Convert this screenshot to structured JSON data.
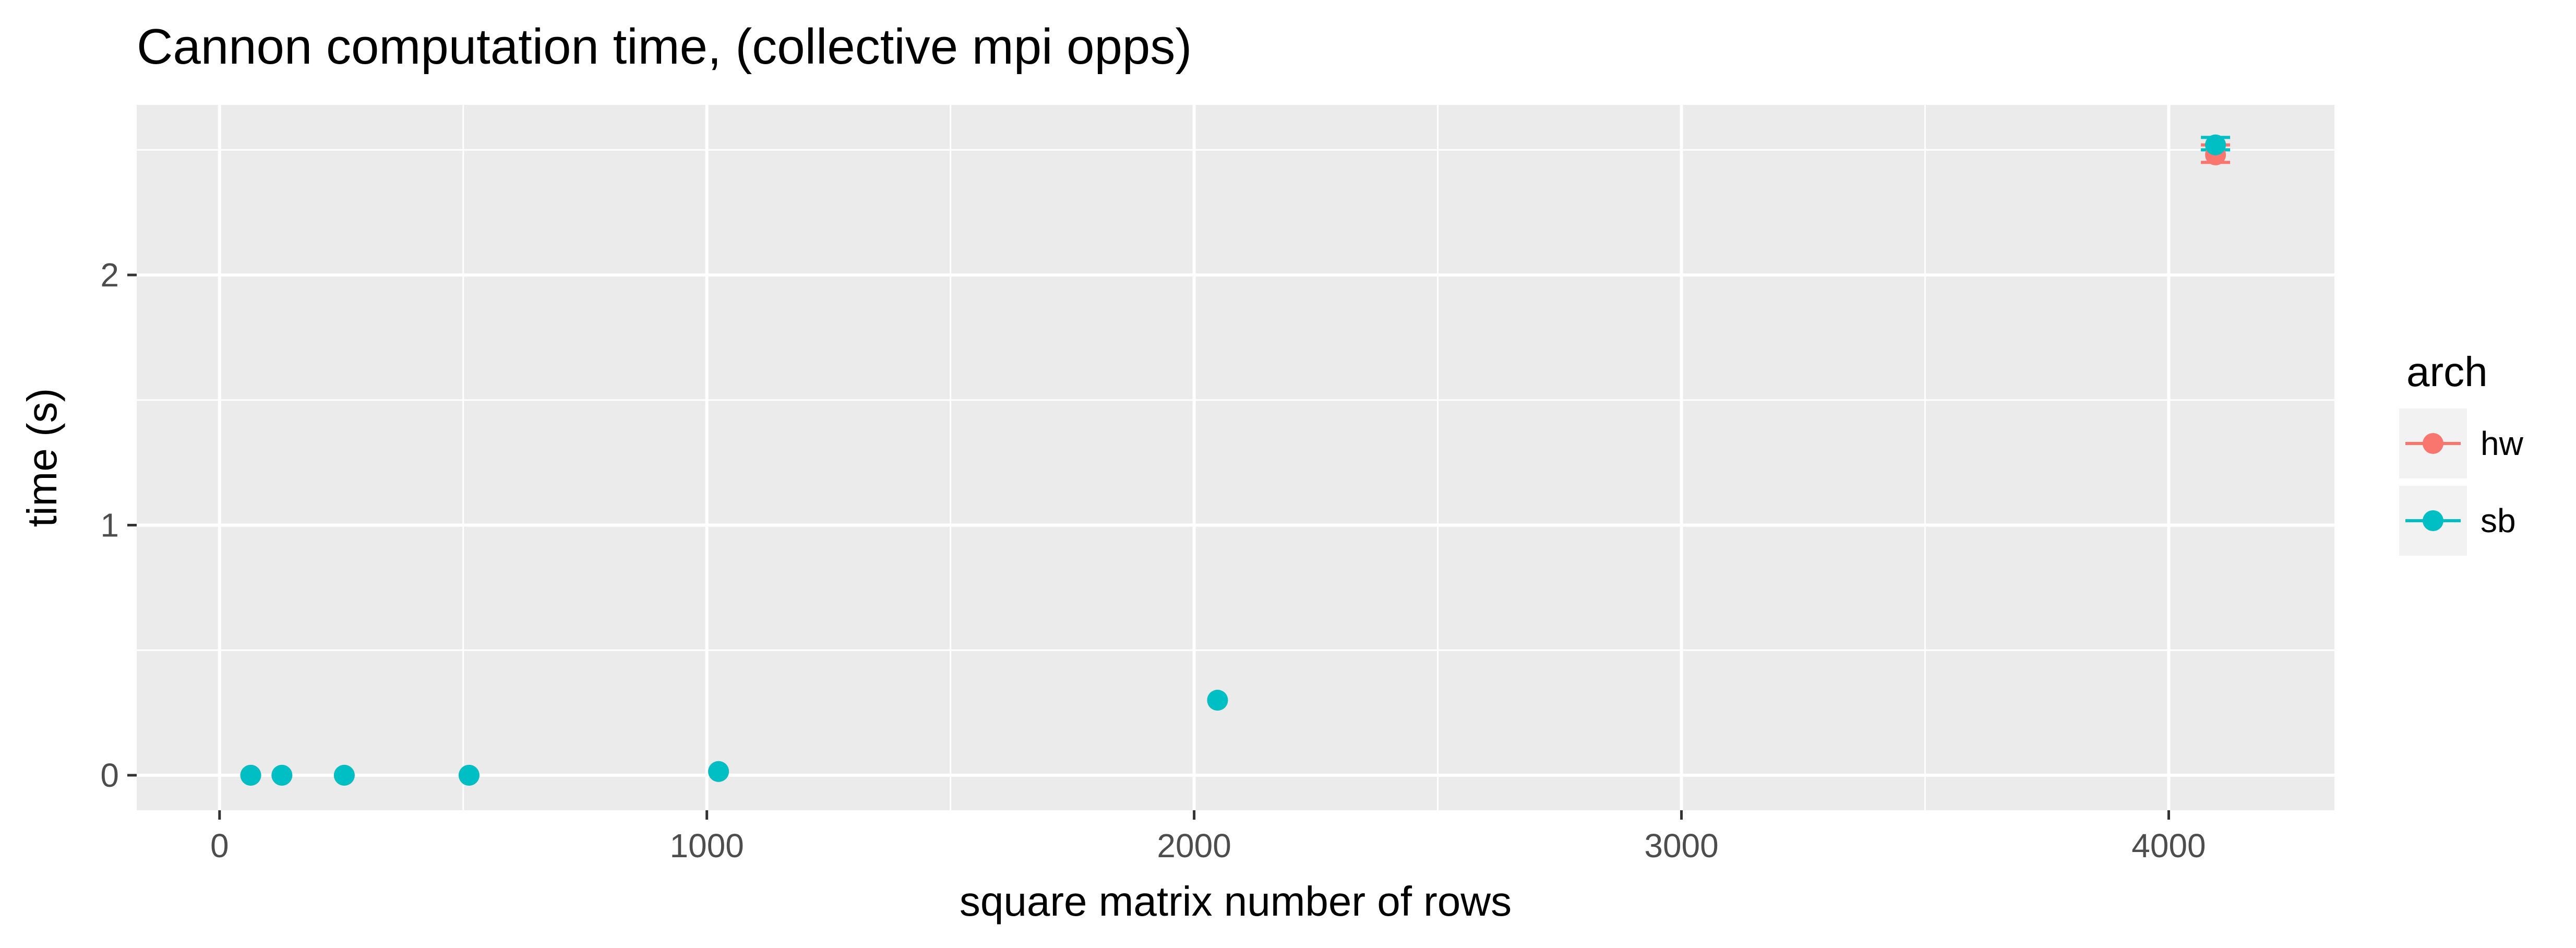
{
  "chart_data": {
    "type": "scatter",
    "title": "Cannon computation time, (collective mpi opps)",
    "xlabel": "square matrix number of rows",
    "ylabel": "time (s)",
    "xlim": [
      -170,
      4340
    ],
    "ylim": [
      -0.14,
      2.68
    ],
    "x_ticks": [
      0,
      1000,
      2000,
      3000,
      4000
    ],
    "x_tick_labels": [
      "0",
      "1000",
      "2000",
      "3000",
      "4000"
    ],
    "y_ticks": [
      0,
      1,
      2
    ],
    "y_tick_labels": [
      "0",
      "1",
      "2"
    ],
    "grid": true,
    "error_bars": true,
    "legend": {
      "title": "arch",
      "position": "right",
      "entries": [
        {
          "name": "hw",
          "color": "#F8766D"
        },
        {
          "name": "sb",
          "color": "#00BFC4"
        }
      ]
    },
    "series": [
      {
        "name": "hw",
        "color": "#F8766D",
        "points": [
          {
            "x": 64,
            "y": 0.0
          },
          {
            "x": 128,
            "y": 0.0
          },
          {
            "x": 256,
            "y": 0.0
          },
          {
            "x": 512,
            "y": 0.0
          },
          {
            "x": 1024,
            "y": 0.015
          },
          {
            "x": 2048,
            "y": 0.3
          },
          {
            "x": 4096,
            "y": 2.48,
            "ymin": 2.45,
            "ymax": 2.52
          }
        ]
      },
      {
        "name": "sb",
        "color": "#00BFC4",
        "points": [
          {
            "x": 64,
            "y": 0.0
          },
          {
            "x": 128,
            "y": 0.0
          },
          {
            "x": 256,
            "y": 0.0
          },
          {
            "x": 512,
            "y": 0.0
          },
          {
            "x": 1024,
            "y": 0.015
          },
          {
            "x": 2048,
            "y": 0.3
          },
          {
            "x": 4096,
            "y": 2.52,
            "ymin": 2.5,
            "ymax": 2.55
          }
        ]
      }
    ]
  }
}
